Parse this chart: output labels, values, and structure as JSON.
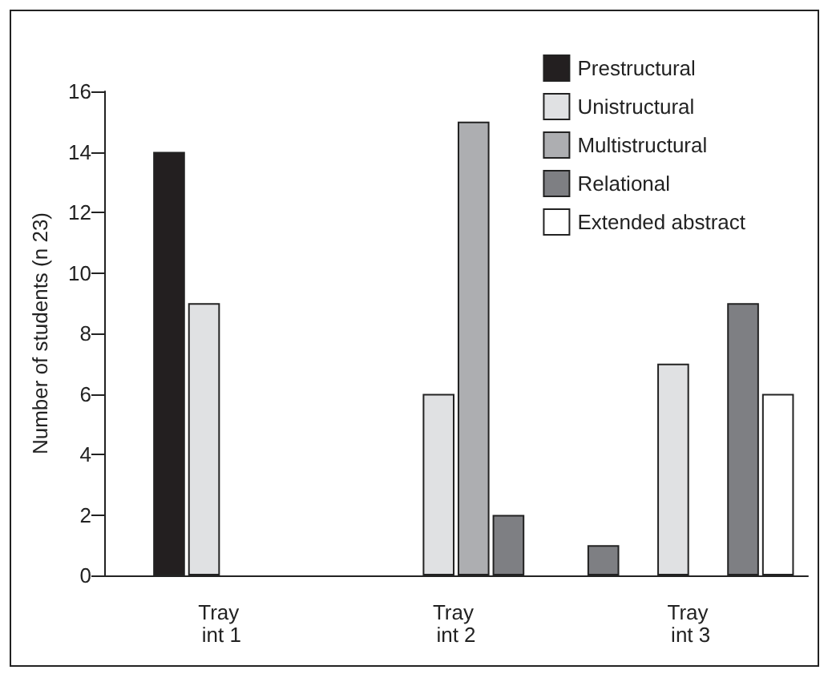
{
  "chart_data": {
    "type": "bar",
    "ylabel": "Number of students (n 23)",
    "categories": [
      "Tray int 1",
      "Tray int 2",
      "Tray int 3"
    ],
    "series": [
      {
        "color": "#7e7f83",
        "values": [
          null,
          null,
          1
        ]
      },
      {
        "name": "Prestructural",
        "color": "#231f20",
        "values": [
          14,
          null,
          null
        ]
      },
      {
        "name": "Unistructural",
        "color": "#e0e1e3",
        "values": [
          9,
          6,
          7
        ]
      },
      {
        "name": "Multistructural",
        "color": "#adaeb1",
        "values": [
          null,
          15,
          null
        ]
      },
      {
        "name": "Relational",
        "color": "#7e7f83",
        "values": [
          null,
          2,
          9
        ]
      },
      {
        "name": "Extended abstract",
        "color": "#ffffff",
        "values": [
          null,
          null,
          6
        ]
      }
    ],
    "ylim": [
      0,
      16
    ],
    "yticks": [
      0,
      2,
      4,
      6,
      8,
      10,
      12,
      14,
      16
    ],
    "grid": false,
    "legend": "top right"
  }
}
